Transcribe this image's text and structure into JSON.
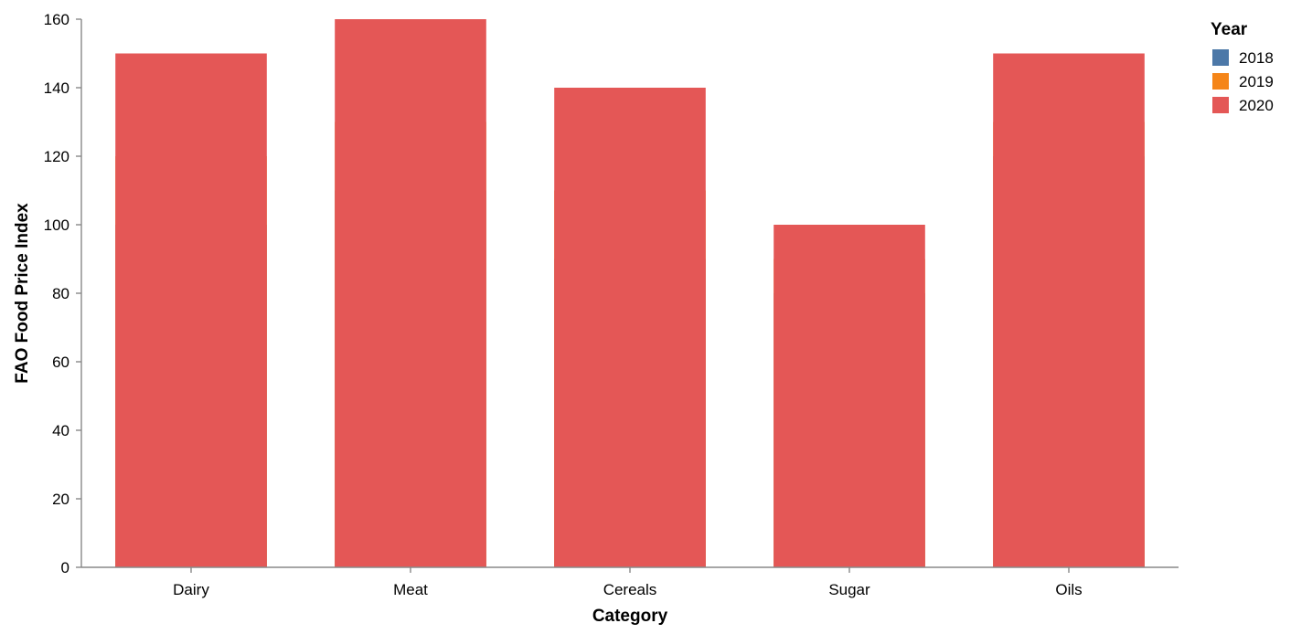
{
  "chart_data": {
    "type": "bar",
    "title": "",
    "xlabel": "Category",
    "ylabel": "FAO Food Price Index",
    "categories": [
      "Dairy",
      "Meat",
      "Cereals",
      "Sugar",
      "Oils"
    ],
    "series": [
      {
        "name": "2018",
        "color": "#4c78a8",
        "values": [
          100,
          110,
          90,
          80,
          120
        ]
      },
      {
        "name": "2019",
        "color": "#f58518",
        "values": [
          120,
          130,
          110,
          90,
          130
        ]
      },
      {
        "name": "2020",
        "color": "#e45756",
        "values": [
          150,
          160,
          140,
          100,
          150
        ]
      }
    ],
    "ylim": [
      0,
      160
    ],
    "yticks": [
      0,
      20,
      40,
      60,
      80,
      100,
      120,
      140,
      160
    ],
    "grid": false,
    "legend": {
      "title": "Year",
      "placement": "top-right"
    }
  }
}
